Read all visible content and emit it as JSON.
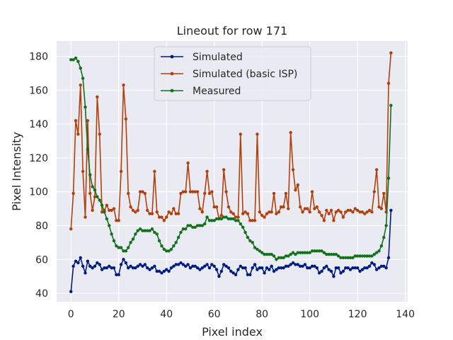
{
  "chart_data": {
    "type": "line",
    "title": "Lineout for row 171",
    "xlabel": "Pixel index",
    "ylabel": "Pixel Intensity",
    "xlim": [
      -6,
      141
    ],
    "ylim": [
      35,
      189
    ],
    "xticks": [
      0,
      20,
      40,
      60,
      80,
      100,
      120,
      140
    ],
    "yticks": [
      40,
      60,
      80,
      100,
      120,
      140,
      160,
      180
    ],
    "grid": true,
    "legend_position": "upper-center",
    "series": [
      {
        "name": "Simulated",
        "color": "#001c7f",
        "x": [
          0,
          1,
          2,
          3,
          4,
          5,
          6,
          7,
          8,
          9,
          10,
          11,
          12,
          13,
          14,
          15,
          16,
          17,
          18,
          19,
          20,
          21,
          22,
          23,
          24,
          25,
          26,
          27,
          28,
          29,
          30,
          31,
          32,
          33,
          34,
          35,
          36,
          37,
          38,
          39,
          40,
          41,
          42,
          43,
          44,
          45,
          46,
          47,
          48,
          49,
          50,
          51,
          52,
          53,
          54,
          55,
          56,
          57,
          58,
          59,
          60,
          61,
          62,
          63,
          64,
          65,
          66,
          67,
          68,
          69,
          70,
          71,
          72,
          73,
          74,
          75,
          76,
          77,
          78,
          79,
          80,
          81,
          82,
          83,
          84,
          85,
          86,
          87,
          88,
          89,
          90,
          91,
          92,
          93,
          94,
          95,
          96,
          97,
          98,
          99,
          100,
          101,
          102,
          103,
          104,
          105,
          106,
          107,
          108,
          109,
          110,
          111,
          112,
          113,
          114,
          115,
          116,
          117,
          118,
          119,
          120,
          121,
          122,
          123,
          124,
          125,
          126,
          127,
          128,
          129,
          130,
          131,
          132,
          133,
          134
        ],
        "values": [
          41,
          56,
          59,
          58,
          61,
          56,
          52,
          59,
          56,
          55,
          56,
          58,
          57,
          54,
          55,
          55,
          56,
          55,
          55,
          51,
          51,
          57,
          60,
          58,
          55,
          56,
          55,
          55,
          56,
          57,
          56,
          57,
          55,
          54,
          55,
          56,
          53,
          53,
          52,
          53,
          54,
          53,
          55,
          56,
          57,
          57,
          58,
          57,
          56,
          57,
          55,
          56,
          56,
          55,
          54,
          55,
          56,
          57,
          55,
          57,
          56,
          54,
          50,
          53,
          57,
          56,
          55,
          53,
          52,
          51,
          54,
          56,
          55,
          55,
          51,
          51,
          55,
          57,
          54,
          55,
          55,
          52,
          55,
          54,
          56,
          53,
          54,
          55,
          55,
          55,
          56,
          56,
          57,
          58,
          57,
          57,
          56,
          56,
          57,
          55,
          55,
          56,
          56,
          55,
          52,
          53,
          55,
          56,
          54,
          53,
          50,
          55,
          55,
          52,
          53,
          55,
          55,
          54,
          55,
          55,
          55,
          53,
          54,
          55,
          55,
          56,
          58,
          57,
          54,
          55,
          56,
          56,
          55,
          61,
          89
        ]
      },
      {
        "name": "Simulated (basic ISP)",
        "color": "#b1400d",
        "x": [
          0,
          1,
          2,
          3,
          4,
          5,
          6,
          7,
          8,
          9,
          10,
          11,
          12,
          13,
          14,
          15,
          16,
          17,
          18,
          19,
          20,
          21,
          22,
          23,
          24,
          25,
          26,
          27,
          28,
          29,
          30,
          31,
          32,
          33,
          34,
          35,
          36,
          37,
          38,
          39,
          40,
          41,
          42,
          43,
          44,
          45,
          46,
          47,
          48,
          49,
          50,
          51,
          52,
          53,
          54,
          55,
          56,
          57,
          58,
          59,
          60,
          61,
          62,
          63,
          64,
          65,
          66,
          67,
          68,
          69,
          70,
          71,
          72,
          73,
          74,
          75,
          76,
          77,
          78,
          79,
          80,
          81,
          82,
          83,
          84,
          85,
          86,
          87,
          88,
          89,
          90,
          91,
          92,
          93,
          94,
          95,
          96,
          97,
          98,
          99,
          100,
          101,
          102,
          103,
          104,
          105,
          106,
          107,
          108,
          109,
          110,
          111,
          112,
          113,
          114,
          115,
          116,
          117,
          118,
          119,
          120,
          121,
          122,
          123,
          124,
          125,
          126,
          127,
          128,
          129,
          130,
          131,
          132,
          133,
          134
        ],
        "values": [
          78,
          99,
          142,
          134,
          163,
          112,
          85,
          142,
          99,
          89,
          97,
          156,
          134,
          88,
          89,
          92,
          89,
          89,
          90,
          83,
          83,
          112,
          163,
          143,
          99,
          91,
          89,
          88,
          89,
          100,
          100,
          99,
          89,
          87,
          87,
          112,
          88,
          85,
          85,
          83,
          85,
          88,
          87,
          90,
          87,
          87,
          99,
          100,
          100,
          117,
          100,
          100,
          100,
          100,
          90,
          88,
          99,
          112,
          99,
          100,
          91,
          91,
          84,
          86,
          113,
          100,
          91,
          88,
          87,
          85,
          85,
          134,
          87,
          88,
          87,
          83,
          83,
          83,
          134,
          88,
          86,
          85,
          87,
          88,
          88,
          99,
          87,
          88,
          91,
          91,
          99,
          90,
          135,
          113,
          101,
          104,
          91,
          88,
          90,
          90,
          88,
          100,
          90,
          91,
          88,
          86,
          83,
          89,
          87,
          89,
          83,
          88,
          89,
          88,
          85,
          88,
          89,
          89,
          88,
          90,
          89,
          88,
          88,
          87,
          88,
          89,
          88,
          100,
          113,
          91,
          90,
          99,
          88,
          164,
          182
        ]
      },
      {
        "name": "Measured",
        "color": "#12711c",
        "x": [
          0,
          1,
          2,
          3,
          4,
          5,
          6,
          7,
          8,
          9,
          10,
          11,
          12,
          13,
          14,
          15,
          16,
          17,
          18,
          19,
          20,
          21,
          22,
          23,
          24,
          25,
          26,
          27,
          28,
          29,
          30,
          31,
          32,
          33,
          34,
          35,
          36,
          37,
          38,
          39,
          40,
          41,
          42,
          43,
          44,
          45,
          46,
          47,
          48,
          49,
          50,
          51,
          52,
          53,
          54,
          55,
          56,
          57,
          58,
          59,
          60,
          61,
          62,
          63,
          64,
          65,
          66,
          67,
          68,
          69,
          70,
          71,
          72,
          73,
          74,
          75,
          76,
          77,
          78,
          79,
          80,
          81,
          82,
          83,
          84,
          85,
          86,
          87,
          88,
          89,
          90,
          91,
          92,
          93,
          94,
          95,
          96,
          97,
          98,
          99,
          100,
          101,
          102,
          103,
          104,
          105,
          106,
          107,
          108,
          109,
          110,
          111,
          112,
          113,
          114,
          115,
          116,
          117,
          118,
          119,
          120,
          121,
          122,
          123,
          124,
          125,
          126,
          127,
          128,
          129,
          130,
          131,
          132,
          133,
          134
        ],
        "values": [
          178,
          178,
          179,
          177,
          173,
          167,
          150,
          125,
          110,
          103,
          101,
          97,
          95,
          92,
          88,
          84,
          80,
          75,
          71,
          68,
          67,
          67,
          65,
          65,
          67,
          70,
          72,
          75,
          77,
          78,
          77,
          77,
          77,
          77,
          78,
          76,
          75,
          71,
          68,
          66,
          65,
          65,
          66,
          68,
          70,
          73,
          76,
          78,
          78,
          80,
          80,
          79,
          79,
          80,
          80,
          80,
          81,
          85,
          83,
          83,
          83,
          84,
          84,
          84,
          85,
          85,
          84,
          84,
          84,
          83,
          83,
          81,
          79,
          76,
          73,
          71,
          70,
          67,
          66,
          65,
          64,
          63,
          63,
          63,
          63,
          62,
          60,
          61,
          61,
          61,
          62,
          62,
          63,
          64,
          63,
          64,
          64,
          64,
          64,
          64,
          64,
          65,
          65,
          65,
          65,
          65,
          64,
          63,
          63,
          63,
          63,
          63,
          62,
          61,
          61,
          61,
          61,
          61,
          61,
          62,
          62,
          62,
          62,
          62,
          62,
          62,
          62,
          63,
          64,
          65,
          68,
          73,
          80,
          108,
          151
        ]
      }
    ]
  }
}
